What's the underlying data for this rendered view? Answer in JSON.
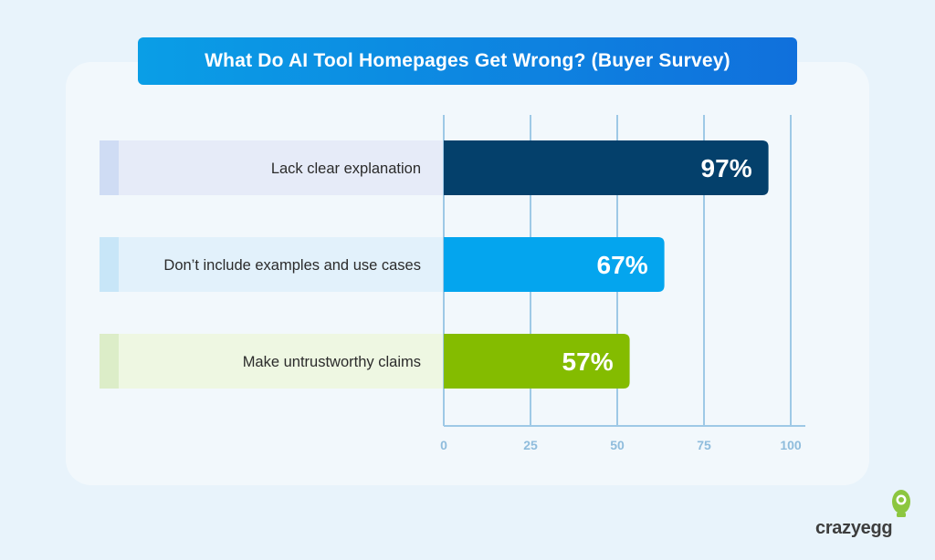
{
  "chart_data": {
    "type": "bar",
    "orientation": "horizontal",
    "title": "What Do AI Tool Homepages Get Wrong? (Buyer Survey)",
    "categories": [
      "Lack clear explanation",
      "Don’t include examples and use cases",
      "Make untrustworthy claims"
    ],
    "values": [
      97,
      67,
      57
    ],
    "value_labels": [
      "97%",
      "67%",
      "57%"
    ],
    "xlim": [
      0,
      100
    ],
    "x_ticks": [
      0,
      25,
      50,
      75,
      100
    ],
    "x_tick_labels": [
      "0",
      "25",
      "50",
      "75",
      "100"
    ],
    "grid": true,
    "bar_colors": [
      "#04406b",
      "#04a5ee",
      "#84bc00"
    ],
    "label_panel_colors": [
      "#e6ebf8",
      "#e2f1fb",
      "#eef7e2"
    ],
    "label_accent_colors": [
      "#cfdcf4",
      "#c8e6f8",
      "#dcedc8"
    ]
  },
  "brand": {
    "logo_text": "crazyegg"
  },
  "colors": {
    "background": "#e8f3fb",
    "panel": "#f2f8fc",
    "axis": "#9ec9e6",
    "tick_label": "#8fbcdc"
  }
}
